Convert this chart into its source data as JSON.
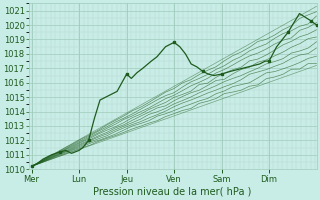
{
  "xlabel": "Pression niveau de la mer( hPa )",
  "bg_color": "#c8ece6",
  "grid_major_color": "#a0ccbb",
  "grid_minor_color": "#b8ddd2",
  "line_color": "#1e5c1e",
  "ylim": [
    1010,
    1021.5
  ],
  "yticks": [
    1010,
    1011,
    1012,
    1013,
    1014,
    1015,
    1016,
    1017,
    1018,
    1019,
    1020,
    1021
  ],
  "day_labels": [
    "Mer",
    "Lun",
    "Jeu",
    "Ven",
    "Sam",
    "Dim"
  ],
  "day_positions": [
    0.0,
    0.833,
    1.667,
    2.5,
    3.333,
    4.167
  ],
  "xlim": [
    -0.05,
    5.0
  ],
  "figsize": [
    3.2,
    2.0
  ],
  "dpi": 100
}
